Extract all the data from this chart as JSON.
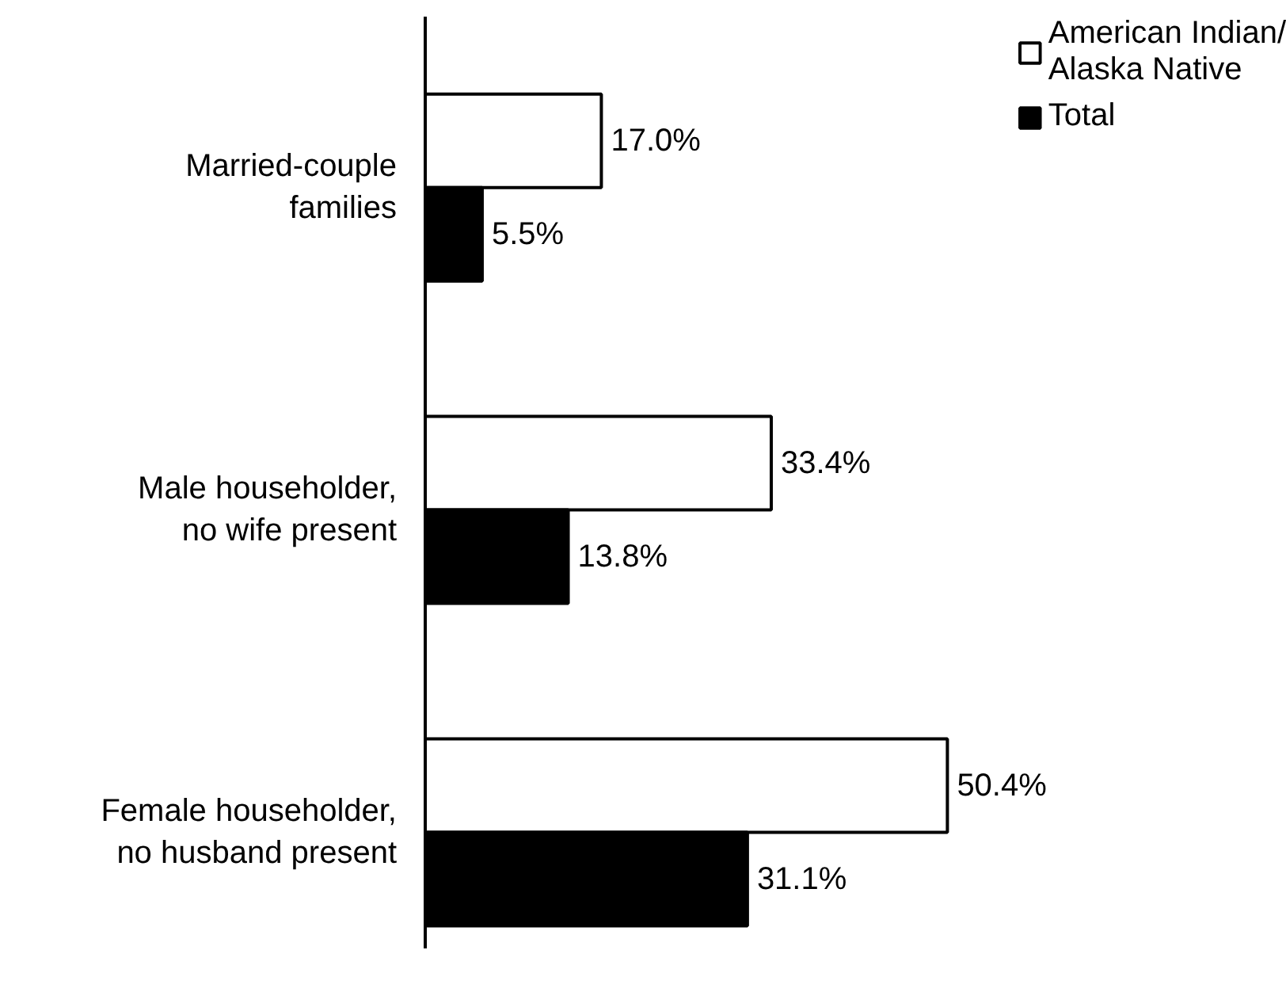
{
  "chart_data": {
    "type": "bar",
    "orientation": "horizontal",
    "categories": [
      "Married-couple\nfamilies",
      "Male householder,\nno wife present",
      "Female householder,\nno husband present"
    ],
    "series": [
      {
        "name": "American Indian/\nAlaska Native",
        "color": "#ffffff",
        "values": [
          17.0,
          33.4,
          50.4
        ],
        "value_labels": [
          "17.0%",
          "33.4%",
          "50.4%"
        ]
      },
      {
        "name": "Total",
        "color": "#000000",
        "values": [
          5.5,
          13.8,
          31.1
        ],
        "value_labels": [
          "5.5%",
          "13.8%",
          "31.1%"
        ]
      }
    ],
    "legend": "top right",
    "grid": false
  }
}
